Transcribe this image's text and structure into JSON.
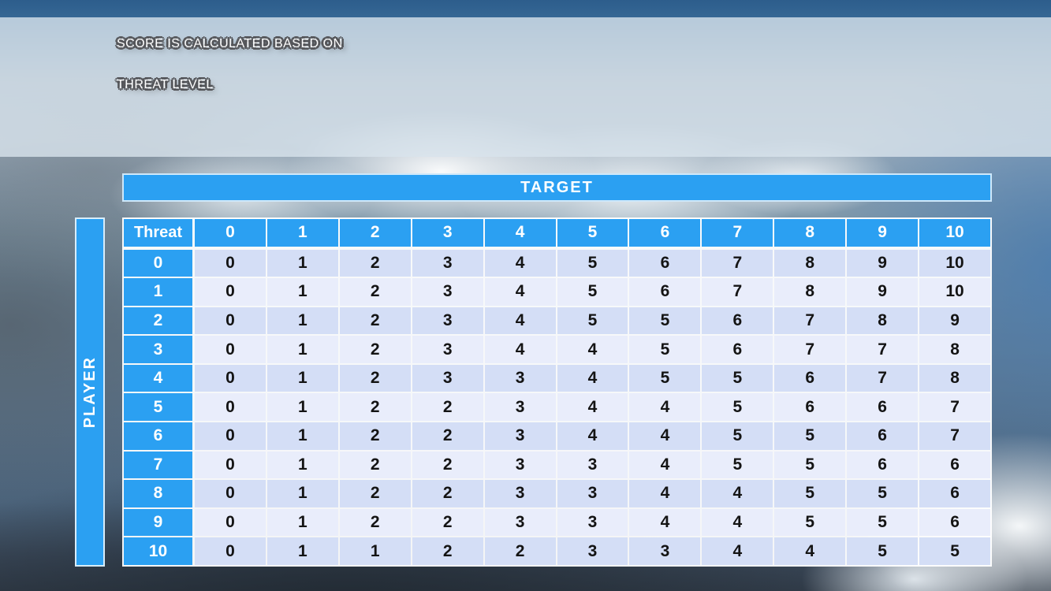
{
  "slide": {
    "title_line1": "SCORE IS CALCULATED BASED ON",
    "title_line2": "THREAT LEVEL"
  },
  "matrix": {
    "target_label": "TARGET",
    "player_label": "PLAYER",
    "corner_label": "Threat",
    "column_headers": [
      "0",
      "1",
      "2",
      "3",
      "4",
      "5",
      "6",
      "7",
      "8",
      "9",
      "10"
    ],
    "row_headers": [
      "0",
      "1",
      "2",
      "3",
      "4",
      "5",
      "6",
      "7",
      "8",
      "9",
      "10"
    ],
    "rows": [
      [
        0,
        1,
        2,
        3,
        4,
        5,
        6,
        7,
        8,
        9,
        10
      ],
      [
        0,
        1,
        2,
        3,
        4,
        5,
        6,
        7,
        8,
        9,
        10
      ],
      [
        0,
        1,
        2,
        3,
        4,
        5,
        5,
        6,
        7,
        8,
        9
      ],
      [
        0,
        1,
        2,
        3,
        4,
        4,
        5,
        6,
        7,
        7,
        8
      ],
      [
        0,
        1,
        2,
        3,
        3,
        4,
        5,
        5,
        6,
        7,
        8
      ],
      [
        0,
        1,
        2,
        2,
        3,
        4,
        4,
        5,
        6,
        6,
        7
      ],
      [
        0,
        1,
        2,
        2,
        3,
        4,
        4,
        5,
        5,
        6,
        7
      ],
      [
        0,
        1,
        2,
        2,
        3,
        3,
        4,
        5,
        5,
        6,
        6
      ],
      [
        0,
        1,
        2,
        2,
        3,
        3,
        4,
        4,
        5,
        5,
        6
      ],
      [
        0,
        1,
        2,
        2,
        3,
        3,
        4,
        4,
        5,
        5,
        6
      ],
      [
        0,
        1,
        1,
        2,
        2,
        3,
        3,
        4,
        4,
        5,
        5
      ]
    ]
  },
  "colors": {
    "header_blue": "#2BA0F2",
    "row_even": "#D4DEF6",
    "row_odd": "#E9EDFB",
    "cell_text": "#141414",
    "header_text": "#FFFFFF"
  }
}
